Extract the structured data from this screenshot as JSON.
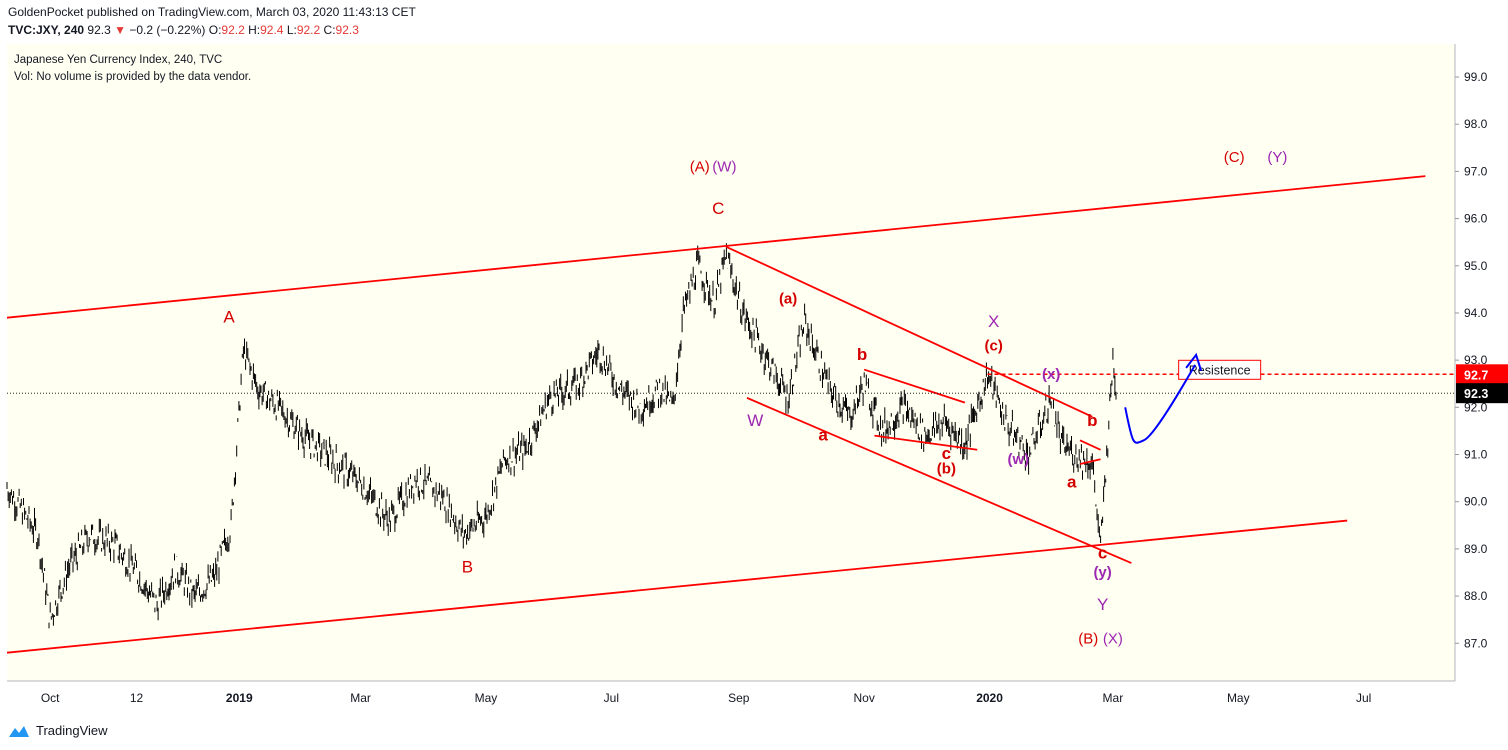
{
  "header": {
    "publisher_line": "GoldenPocket published on TradingView.com, March 03, 2020 11:43:13 CET",
    "symbol": "TVC:JXY, 240",
    "last": "92.3",
    "change": "−0.2 (−0.22%)",
    "o_label": "O:",
    "o_value": "92.2",
    "h_label": "H:",
    "h_value": "92.4",
    "l_label": "L:",
    "l_value": "92.2",
    "c_label": "C:",
    "c_value": "92.3"
  },
  "legend": {
    "title": "Japanese Yen Currency Index, 240, TVC",
    "volume_note": "Vol: No volume is provided by the data vendor."
  },
  "footer": {
    "brand": "TradingView"
  },
  "chart_data": {
    "type": "line",
    "title": "Japanese Yen Currency Index, 240, TVC",
    "xlabel": "",
    "ylabel": "",
    "ylim": [
      86.2,
      99.7
    ],
    "y_ticks": [
      "87.0",
      "88.0",
      "89.0",
      "90.0",
      "91.0",
      "92.0",
      "93.0",
      "94.0",
      "95.0",
      "96.0",
      "97.0",
      "98.0",
      "99.0"
    ],
    "x_ticks": [
      "Oct",
      "12",
      "2019",
      "Mar",
      "May",
      "Jul",
      "Sep",
      "Nov",
      "2020",
      "Mar",
      "May",
      "Jul"
    ],
    "x_tick_bold": [
      false,
      false,
      true,
      false,
      false,
      false,
      false,
      false,
      true,
      false,
      false,
      false
    ],
    "last_price": 92.3,
    "resistance_price": 92.7,
    "resistance_label": "Resistence",
    "price_tags": [
      {
        "text": "92.7",
        "color": "#ff0000"
      },
      {
        "text": "92.3",
        "color": "#000000"
      }
    ],
    "price_series": [
      {
        "t": "2018-09-10",
        "v": 90.3
      },
      {
        "t": "2018-09-25",
        "v": 89.3
      },
      {
        "t": "2018-10-01",
        "v": 87.5
      },
      {
        "t": "2018-10-10",
        "v": 88.6
      },
      {
        "t": "2018-10-20",
        "v": 89.3
      },
      {
        "t": "2018-11-01",
        "v": 89.1
      },
      {
        "t": "2018-11-12",
        "v": 88.5
      },
      {
        "t": "2018-11-22",
        "v": 87.8
      },
      {
        "t": "2018-12-01",
        "v": 88.6
      },
      {
        "t": "2018-12-10",
        "v": 88.0
      },
      {
        "t": "2018-12-20",
        "v": 88.4
      },
      {
        "t": "2018-12-28",
        "v": 89.5
      },
      {
        "t": "2019-01-03",
        "v": 93.2
      },
      {
        "t": "2019-01-10",
        "v": 92.4
      },
      {
        "t": "2019-01-20",
        "v": 92.0
      },
      {
        "t": "2019-02-01",
        "v": 91.4
      },
      {
        "t": "2019-02-15",
        "v": 90.9
      },
      {
        "t": "2019-03-01",
        "v": 90.4
      },
      {
        "t": "2019-03-15",
        "v": 89.6
      },
      {
        "t": "2019-03-28",
        "v": 90.5
      },
      {
        "t": "2019-04-10",
        "v": 90.1
      },
      {
        "t": "2019-04-20",
        "v": 89.3
      },
      {
        "t": "2019-05-01",
        "v": 89.7
      },
      {
        "t": "2019-05-10",
        "v": 90.9
      },
      {
        "t": "2019-05-20",
        "v": 91.1
      },
      {
        "t": "2019-06-01",
        "v": 92.2
      },
      {
        "t": "2019-06-15",
        "v": 92.5
      },
      {
        "t": "2019-06-25",
        "v": 93.2
      },
      {
        "t": "2019-07-05",
        "v": 92.4
      },
      {
        "t": "2019-07-15",
        "v": 92.0
      },
      {
        "t": "2019-07-25",
        "v": 92.4
      },
      {
        "t": "2019-07-31",
        "v": 92.0
      },
      {
        "t": "2019-08-05",
        "v": 94.0
      },
      {
        "t": "2019-08-12",
        "v": 95.0
      },
      {
        "t": "2019-08-20",
        "v": 94.2
      },
      {
        "t": "2019-08-26",
        "v": 95.2
      },
      {
        "t": "2019-09-03",
        "v": 94.0
      },
      {
        "t": "2019-09-15",
        "v": 93.0
      },
      {
        "t": "2019-09-25",
        "v": 92.2
      },
      {
        "t": "2019-10-03",
        "v": 93.8
      },
      {
        "t": "2019-10-15",
        "v": 92.4
      },
      {
        "t": "2019-10-25",
        "v": 91.8
      },
      {
        "t": "2019-11-01",
        "v": 92.5
      },
      {
        "t": "2019-11-10",
        "v": 91.5
      },
      {
        "t": "2019-11-20",
        "v": 92.0
      },
      {
        "t": "2019-12-01",
        "v": 91.4
      },
      {
        "t": "2019-12-10",
        "v": 91.7
      },
      {
        "t": "2019-12-20",
        "v": 91.2
      },
      {
        "t": "2019-12-31",
        "v": 92.7
      },
      {
        "t": "2020-01-10",
        "v": 91.6
      },
      {
        "t": "2020-01-20",
        "v": 91.0
      },
      {
        "t": "2020-01-31",
        "v": 92.2
      },
      {
        "t": "2020-02-05",
        "v": 91.2
      },
      {
        "t": "2020-02-12",
        "v": 91.0
      },
      {
        "t": "2020-02-20",
        "v": 90.8
      },
      {
        "t": "2020-02-24",
        "v": 89.0
      },
      {
        "t": "2020-02-27",
        "v": 91.0
      },
      {
        "t": "2020-03-01",
        "v": 93.0
      },
      {
        "t": "2020-03-03",
        "v": 92.3
      }
    ],
    "annotations": [
      {
        "text": "(A)",
        "color": "#d50000",
        "t": "2019-08-13",
        "v": 97.0
      },
      {
        "text": "(W)",
        "color": "#9c27b0",
        "t": "2019-08-25",
        "v": 97.0
      },
      {
        "text": "C",
        "color": "#d50000",
        "t": "2019-08-22",
        "v": 96.1
      },
      {
        "text": "A",
        "color": "#d50000",
        "t": "2018-12-27",
        "v": 93.8
      },
      {
        "text": "B",
        "color": "#d50000",
        "t": "2019-04-22",
        "v": 88.5
      },
      {
        "text": "W",
        "color": "#9c27b0",
        "t": "2019-09-09",
        "v": 91.6
      },
      {
        "text": "(a)",
        "color": "#d50000",
        "t": "2019-09-25",
        "v": 94.2
      },
      {
        "text": "b",
        "color": "#d50000",
        "t": "2019-10-31",
        "v": 93.0
      },
      {
        "text": "a",
        "color": "#d50000",
        "t": "2019-10-12",
        "v": 91.3
      },
      {
        "text": "c",
        "color": "#d50000",
        "t": "2019-12-11",
        "v": 90.9
      },
      {
        "text": "(b)",
        "color": "#d50000",
        "t": "2019-12-11",
        "v": 90.6
      },
      {
        "text": "X",
        "color": "#9c27b0",
        "t": "2020-01-03",
        "v": 93.7
      },
      {
        "text": "(c)",
        "color": "#d50000",
        "t": "2020-01-03",
        "v": 93.2
      },
      {
        "text": "(x)",
        "color": "#9c27b0",
        "t": "2020-01-31",
        "v": 92.6
      },
      {
        "text": "(w)",
        "color": "#9c27b0",
        "t": "2020-01-15",
        "v": 90.8
      },
      {
        "text": "b",
        "color": "#d50000",
        "t": "2020-02-20",
        "v": 91.6
      },
      {
        "text": "a",
        "color": "#d50000",
        "t": "2020-02-10",
        "v": 90.3
      },
      {
        "text": "c",
        "color": "#d50000",
        "t": "2020-02-25",
        "v": 88.8
      },
      {
        "text": "(y)",
        "color": "#9c27b0",
        "t": "2020-02-25",
        "v": 88.4
      },
      {
        "text": "Y",
        "color": "#9c27b0",
        "t": "2020-02-25",
        "v": 87.7
      },
      {
        "text": "(B)",
        "color": "#d50000",
        "t": "2020-02-18",
        "v": 87.0
      },
      {
        "text": "(X)",
        "color": "#9c27b0",
        "t": "2020-03-01",
        "v": 87.0
      },
      {
        "text": "(C)",
        "color": "#d50000",
        "t": "2020-04-29",
        "v": 97.2
      },
      {
        "text": "(Y)",
        "color": "#9c27b0",
        "t": "2020-05-20",
        "v": 97.2
      }
    ],
    "trend_lines": [
      {
        "name": "upper-channel",
        "t1": "2018-09-10",
        "v1": 93.9,
        "t2": "2020-07-31",
        "v2": 96.9
      },
      {
        "name": "lower-channel",
        "t1": "2018-09-10",
        "v1": 86.8,
        "t2": "2020-06-23",
        "v2": 89.6
      },
      {
        "name": "downtrend-upper",
        "t1": "2019-08-26",
        "v1": 95.4,
        "t2": "2020-02-20",
        "v2": 91.8
      },
      {
        "name": "downtrend-lower",
        "t1": "2019-09-05",
        "v1": 92.2,
        "t2": "2020-03-10",
        "v2": 88.7
      },
      {
        "name": "b-wedge-upper",
        "t1": "2019-11-01",
        "v1": 92.8,
        "t2": "2019-12-20",
        "v2": 92.1
      },
      {
        "name": "b-wedge-lower",
        "t1": "2019-11-06",
        "v1": 91.4,
        "t2": "2019-12-26",
        "v2": 91.1
      },
      {
        "name": "small-wedge-upper",
        "t1": "2020-02-14",
        "v1": 91.3,
        "t2": "2020-02-24",
        "v2": 91.1
      },
      {
        "name": "small-wedge-lower",
        "t1": "2020-02-14",
        "v1": 90.8,
        "t2": "2020-02-24",
        "v2": 90.9
      }
    ],
    "projection_path": [
      {
        "t": "2020-03-07",
        "v": 92.0
      },
      {
        "t": "2020-03-16",
        "v": 91.3
      },
      {
        "t": "2020-03-25",
        "v": 91.5
      },
      {
        "t": "2020-04-06",
        "v": 92.8
      },
      {
        "t": "2020-04-10",
        "v": 92.9
      }
    ],
    "colors": {
      "background": "#fffff2",
      "candles": "#000000",
      "channel": "#ff0000",
      "projection": "#0000ff",
      "resistance": "#ff0000",
      "wave_red": "#d50000",
      "wave_purple": "#9c27b0"
    }
  }
}
